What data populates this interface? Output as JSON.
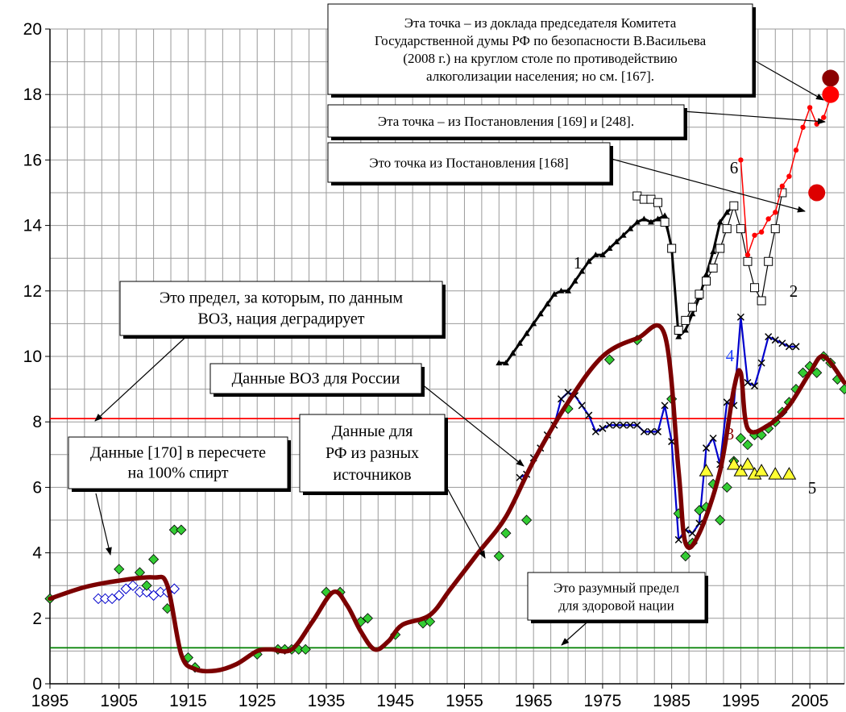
{
  "chart_data": {
    "type": "line",
    "xlim": [
      1895,
      2010
    ],
    "ylim": [
      0,
      20
    ],
    "x_ticks": [
      "1895",
      "1905",
      "1915",
      "1925",
      "1935",
      "1945",
      "1955",
      "1965",
      "1975",
      "1985",
      "1995",
      "2005"
    ],
    "y_ticks": [
      "0",
      "2",
      "4",
      "6",
      "8",
      "10",
      "12",
      "14",
      "16",
      "18",
      "20"
    ],
    "grid": true,
    "reference_lines": [
      {
        "y": 8.1,
        "color": "#ff0000"
      },
      {
        "y": 1.1,
        "color": "#008000"
      }
    ],
    "series": [
      {
        "id": "s1",
        "label": "1",
        "color": "#000000",
        "marker": "triangle",
        "points": [
          [
            1960,
            9.8
          ],
          [
            1961,
            9.8
          ],
          [
            1962,
            10.1
          ],
          [
            1963,
            10.4
          ],
          [
            1964,
            10.7
          ],
          [
            1965,
            11.0
          ],
          [
            1966,
            11.3
          ],
          [
            1967,
            11.6
          ],
          [
            1968,
            11.9
          ],
          [
            1969,
            12.0
          ],
          [
            1970,
            12.0
          ],
          [
            1971,
            12.3
          ],
          [
            1972,
            12.6
          ],
          [
            1973,
            12.9
          ],
          [
            1974,
            13.1
          ],
          [
            1975,
            13.1
          ],
          [
            1976,
            13.3
          ],
          [
            1977,
            13.5
          ],
          [
            1978,
            13.7
          ],
          [
            1979,
            13.9
          ],
          [
            1980,
            14.1
          ],
          [
            1981,
            14.2
          ],
          [
            1982,
            14.1
          ],
          [
            1983,
            14.2
          ],
          [
            1984,
            14.3
          ],
          [
            1985,
            13.3
          ],
          [
            1986,
            10.6
          ],
          [
            1987,
            10.8
          ],
          [
            1988,
            11.3
          ],
          [
            1989,
            11.8
          ],
          [
            1990,
            12.5
          ],
          [
            1991,
            13.2
          ],
          [
            1992,
            14.1
          ],
          [
            1993,
            14.4
          ],
          [
            1994,
            14.6
          ]
        ]
      },
      {
        "id": "s2",
        "label": "2",
        "color": "#000000",
        "marker": "square-open",
        "points": [
          [
            1980,
            14.9
          ],
          [
            1981,
            14.8
          ],
          [
            1982,
            14.8
          ],
          [
            1983,
            14.7
          ],
          [
            1984,
            14.1
          ],
          [
            1985,
            13.3
          ],
          [
            1986,
            10.8
          ],
          [
            1987,
            11.1
          ],
          [
            1988,
            11.5
          ],
          [
            1989,
            11.9
          ],
          [
            1990,
            12.3
          ],
          [
            1991,
            12.7
          ],
          [
            1992,
            13.3
          ],
          [
            1993,
            13.9
          ],
          [
            1994,
            14.6
          ],
          [
            1995,
            13.9
          ],
          [
            1996,
            12.9
          ],
          [
            1997,
            12.1
          ],
          [
            1998,
            11.7
          ],
          [
            1999,
            12.9
          ],
          [
            2000,
            13.9
          ],
          [
            2001,
            15.0
          ]
        ]
      },
      {
        "id": "s3",
        "label": "3",
        "color": "#7b0000",
        "marker": "none",
        "points": [
          [
            1895,
            2.6
          ],
          [
            1900,
            2.95
          ],
          [
            1905,
            3.15
          ],
          [
            1910,
            3.25
          ],
          [
            1912,
            3.0
          ],
          [
            1914,
            0.9
          ],
          [
            1916,
            0.45
          ],
          [
            1919,
            0.4
          ],
          [
            1922,
            0.6
          ],
          [
            1925,
            1.0
          ],
          [
            1927,
            1.05
          ],
          [
            1930,
            1.05
          ],
          [
            1933,
            1.9
          ],
          [
            1936,
            2.8
          ],
          [
            1938,
            2.4
          ],
          [
            1940,
            1.6
          ],
          [
            1942,
            1.05
          ],
          [
            1944,
            1.3
          ],
          [
            1946,
            1.8
          ],
          [
            1950,
            2.1
          ],
          [
            1953,
            2.9
          ],
          [
            1957,
            4.0
          ],
          [
            1961,
            5.1
          ],
          [
            1965,
            6.8
          ],
          [
            1970,
            8.6
          ],
          [
            1975,
            10.0
          ],
          [
            1980,
            10.55
          ],
          [
            1984,
            10.65
          ],
          [
            1986,
            6.5
          ],
          [
            1987,
            4.3
          ],
          [
            1989,
            4.6
          ],
          [
            1992,
            6.5
          ],
          [
            1994,
            9.0
          ],
          [
            1995,
            9.5
          ],
          [
            1996,
            7.8
          ],
          [
            1999,
            7.9
          ],
          [
            2002,
            8.5
          ],
          [
            2005,
            9.5
          ],
          [
            2007,
            10.0
          ],
          [
            2010,
            9.2
          ]
        ]
      },
      {
        "id": "s4",
        "label": "4",
        "color": "#0000cc",
        "marker": "cross",
        "points": [
          [
            1963,
            6.3
          ],
          [
            1964,
            6.4
          ],
          [
            1965,
            6.9
          ],
          [
            1966,
            7.2
          ],
          [
            1967,
            7.6
          ],
          [
            1968,
            7.9
          ],
          [
            1969,
            8.7
          ],
          [
            1970,
            8.9
          ],
          [
            1971,
            8.8
          ],
          [
            1972,
            8.5
          ],
          [
            1973,
            8.2
          ],
          [
            1974,
            7.7
          ],
          [
            1975,
            7.8
          ],
          [
            1976,
            7.9
          ],
          [
            1977,
            7.9
          ],
          [
            1978,
            7.9
          ],
          [
            1979,
            7.9
          ],
          [
            1980,
            7.9
          ],
          [
            1981,
            7.7
          ],
          [
            1982,
            7.7
          ],
          [
            1983,
            7.7
          ],
          [
            1984,
            8.5
          ],
          [
            1985,
            7.4
          ],
          [
            1986,
            4.4
          ],
          [
            1987,
            4.7
          ],
          [
            1988,
            4.6
          ],
          [
            1989,
            4.9
          ],
          [
            1990,
            7.2
          ],
          [
            1991,
            7.5
          ],
          [
            1992,
            6.7
          ],
          [
            1993,
            8.6
          ],
          [
            1994,
            8.5
          ],
          [
            1995,
            11.2
          ],
          [
            1996,
            9.2
          ],
          [
            1997,
            9.1
          ],
          [
            1998,
            9.8
          ],
          [
            1999,
            10.6
          ],
          [
            2000,
            10.5
          ],
          [
            2001,
            10.4
          ],
          [
            2002,
            10.3
          ],
          [
            2003,
            10.3
          ]
        ]
      },
      {
        "id": "s5",
        "label": "5",
        "color": "#e0e000",
        "marker": "triangle-filled",
        "points": [
          [
            1990,
            6.5
          ],
          [
            1994,
            6.7
          ],
          [
            1995,
            6.5
          ],
          [
            1996,
            6.7
          ],
          [
            1997,
            6.4
          ],
          [
            1998,
            6.5
          ],
          [
            2000,
            6.4
          ],
          [
            2002,
            6.4
          ]
        ]
      },
      {
        "id": "s6",
        "label": "6",
        "color": "#ff0000",
        "marker": "dot",
        "points": [
          [
            1995,
            16.0
          ],
          [
            1996,
            13.1
          ],
          [
            1997,
            13.7
          ],
          [
            1998,
            13.8
          ],
          [
            1999,
            14.2
          ],
          [
            2000,
            14.4
          ],
          [
            2001,
            15.2
          ],
          [
            2002,
            15.5
          ],
          [
            2003,
            16.3
          ],
          [
            2004,
            17.0
          ],
          [
            2005,
            17.6
          ],
          [
            2006,
            17.1
          ],
          [
            2007,
            17.3
          ],
          [
            2008,
            17.9
          ]
        ]
      },
      {
        "id": "s7",
        "label": "",
        "color": "#00aa00",
        "marker": "diamond",
        "points": [
          [
            1895,
            2.6
          ],
          [
            1905,
            3.5
          ],
          [
            1908,
            3.4
          ],
          [
            1909,
            3.0
          ],
          [
            1910,
            3.8
          ],
          [
            1912,
            2.3
          ],
          [
            1913,
            4.7
          ],
          [
            1914,
            4.7
          ],
          [
            1915,
            0.8
          ],
          [
            1916,
            0.5
          ],
          [
            1925,
            0.9
          ],
          [
            1928,
            1.05
          ],
          [
            1929,
            1.05
          ],
          [
            1930,
            1.05
          ],
          [
            1931,
            1.05
          ],
          [
            1932,
            1.05
          ],
          [
            1935,
            2.8
          ],
          [
            1937,
            2.8
          ],
          [
            1940,
            1.9
          ],
          [
            1941,
            2.0
          ],
          [
            1945,
            1.5
          ],
          [
            1949,
            1.85
          ],
          [
            1950,
            1.9
          ],
          [
            1960,
            3.9
          ],
          [
            1961,
            4.6
          ],
          [
            1964,
            5.0
          ],
          [
            1970,
            8.4
          ],
          [
            1976,
            9.9
          ],
          [
            1980,
            10.5
          ],
          [
            1985,
            8.7
          ],
          [
            1986,
            5.2
          ],
          [
            1987,
            3.9
          ],
          [
            1988,
            4.3
          ],
          [
            1989,
            5.3
          ],
          [
            1990,
            5.4
          ],
          [
            1991,
            6.1
          ],
          [
            1992,
            5.0
          ],
          [
            1993,
            6.0
          ],
          [
            1994,
            6.8
          ],
          [
            1995,
            7.5
          ],
          [
            1996,
            7.3
          ],
          [
            1997,
            7.6
          ],
          [
            1998,
            7.6
          ],
          [
            1999,
            7.8
          ],
          [
            2000,
            8.0
          ],
          [
            2001,
            8.3
          ],
          [
            2002,
            8.6
          ],
          [
            2003,
            9.0
          ],
          [
            2004,
            9.5
          ],
          [
            2005,
            9.7
          ],
          [
            2006,
            9.5
          ],
          [
            2007,
            10.0
          ],
          [
            2008,
            9.8
          ],
          [
            2009,
            9.3
          ],
          [
            2010,
            9.0
          ]
        ]
      },
      {
        "id": "s8",
        "label": "",
        "color": "#0000cc",
        "marker": "diamond-open",
        "points": [
          [
            1902,
            2.6
          ],
          [
            1903,
            2.6
          ],
          [
            1904,
            2.6
          ],
          [
            1905,
            2.7
          ],
          [
            1906,
            2.9
          ],
          [
            1907,
            3.0
          ],
          [
            1908,
            2.8
          ],
          [
            1909,
            2.8
          ],
          [
            1910,
            2.7
          ],
          [
            1911,
            2.8
          ],
          [
            1912,
            2.8
          ],
          [
            1913,
            2.9
          ]
        ]
      }
    ],
    "highlight_points": [
      {
        "x": 2008,
        "y": 18.5,
        "color": "#8b0000"
      },
      {
        "x": 2008,
        "y": 18.0,
        "color": "#ff0000"
      },
      {
        "x": 2006,
        "y": 15.0,
        "color": "#dd0000"
      }
    ],
    "annotations": [
      {
        "key": "a1",
        "lines": [
          "Эта точка – из доклада председателя Комитета",
          "Государственной думы РФ по безопасности В.Васильева",
          "(2008 г.) на круглом столе по противодействию",
          "алкоголизации населения; но см. [167]."
        ]
      },
      {
        "key": "a2",
        "lines": [
          "Эта точка – из Постановления [169] и [248]."
        ]
      },
      {
        "key": "a3",
        "lines": [
          "Это точка из Постановления [168]"
        ]
      },
      {
        "key": "a4",
        "lines": [
          "Это предел, за которым, по данным",
          "ВОЗ, нация деградирует"
        ]
      },
      {
        "key": "a5",
        "lines": [
          "Данные ВОЗ для России"
        ]
      },
      {
        "key": "a6",
        "lines": [
          "Данные [170] в пересчете",
          "на 100% спирт"
        ]
      },
      {
        "key": "a7",
        "lines": [
          "Данные для",
          "РФ из разных",
          "источников"
        ]
      },
      {
        "key": "a8",
        "lines": [
          "Это разумный предел",
          "для здоровой нации"
        ]
      }
    ]
  }
}
